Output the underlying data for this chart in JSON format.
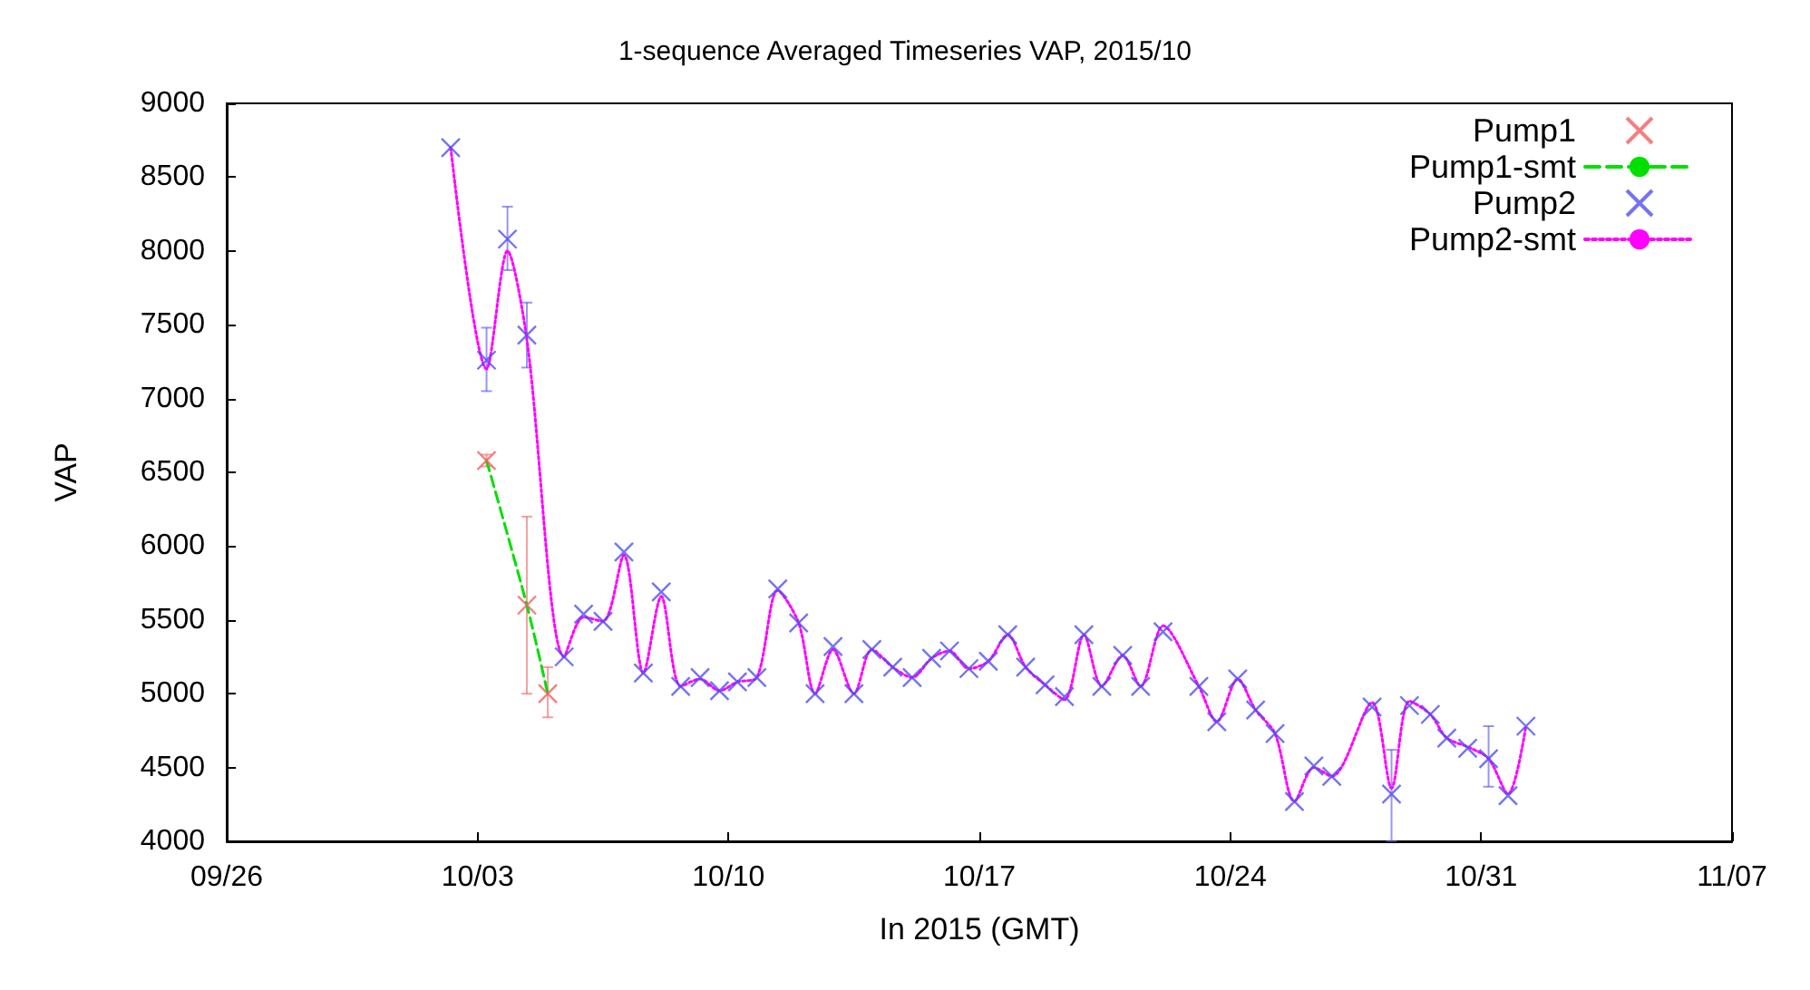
{
  "chart_data": {
    "type": "line",
    "title": "1-sequence Averaged Timeseries VAP, 2015/10",
    "xlabel": "In 2015 (GMT)",
    "ylabel": "VAP",
    "xlim": [
      "2015-09-26",
      "2015-11-07"
    ],
    "xticks": [
      {
        "value": "2015-09-26",
        "label": "09/26"
      },
      {
        "value": "2015-10-03",
        "label": "10/03"
      },
      {
        "value": "2015-10-10",
        "label": "10/10"
      },
      {
        "value": "2015-10-17",
        "label": "10/17"
      },
      {
        "value": "2015-10-24",
        "label": "10/24"
      },
      {
        "value": "2015-10-31",
        "label": "10/31"
      },
      {
        "value": "2015-11-07",
        "label": "11/07"
      }
    ],
    "ylim": [
      4000,
      9000
    ],
    "yticks": [
      4000,
      4500,
      5000,
      5500,
      6000,
      6500,
      7000,
      7500,
      8000,
      8500,
      9000
    ],
    "grid": false,
    "legend": "top right",
    "series": [
      {
        "name": "Pump1",
        "type": "scatter",
        "marker": "cross",
        "color": "#f06060",
        "x": [
          "2015-10-03T06:00",
          "2015-10-04T09:00",
          "2015-10-04T23:00"
        ],
        "values": [
          6580,
          5600,
          5000
        ],
        "errors": [
          [
            6540,
            6620
          ],
          [
            5000,
            6200
          ],
          [
            4840,
            5180
          ]
        ]
      },
      {
        "name": "Pump1-smt",
        "marker": "none",
        "line_style": "dashed",
        "color": "#00e000",
        "x": [
          "2015-10-03T06:00",
          "2015-10-04T09:00",
          "2015-10-04T23:00"
        ],
        "values": [
          6580,
          5600,
          5000
        ]
      },
      {
        "name": "Pump2",
        "type": "scatter",
        "marker": "cross",
        "color": "#5050f0",
        "x": [
          "2015-10-02T06:00",
          "2015-10-03T06:00",
          "2015-10-03T20:00",
          "2015-10-04T09:00",
          "2015-10-05T10:00",
          "2015-10-05T23:00",
          "2015-10-06T12:00",
          "2015-10-07T02:00",
          "2015-10-07T15:00",
          "2015-10-08T03:00",
          "2015-10-08T16:00",
          "2015-10-09T05:00",
          "2015-10-09T18:00",
          "2015-10-10T06:00",
          "2015-10-10T19:00",
          "2015-10-11T09:00",
          "2015-10-11T23:00",
          "2015-10-12T10:00",
          "2015-10-12T22:00",
          "2015-10-13T12:00",
          "2015-10-14T00:00",
          "2015-10-14T14:00",
          "2015-10-15T03:00",
          "2015-10-15T16:00",
          "2015-10-16T04:00",
          "2015-10-16T17:00",
          "2015-10-17T06:00",
          "2015-10-17T19:00",
          "2015-10-18T07:00",
          "2015-10-18T20:00",
          "2015-10-19T09:00",
          "2015-10-19T22:00",
          "2015-10-20T10:00",
          "2015-10-21T00:00",
          "2015-10-21T12:00",
          "2015-10-22T03:00",
          "2015-10-23T03:00",
          "2015-10-23T15:00",
          "2015-10-24T05:00",
          "2015-10-24T17:00",
          "2015-10-25T06:00",
          "2015-10-25T19:00",
          "2015-10-26T08:00",
          "2015-10-26T20:00",
          "2015-10-27T23:00",
          "2015-10-28T12:00",
          "2015-10-29T00:00",
          "2015-10-29T14:00",
          "2015-10-30T01:00",
          "2015-10-30T15:00",
          "2015-10-31T05:00",
          "2015-10-31T18:00",
          "2015-11-01T06:00"
        ],
        "values": [
          8700,
          7260,
          8080,
          7430,
          5250,
          5540,
          5490,
          5960,
          5140,
          5690,
          5050,
          5110,
          5020,
          5080,
          5110,
          5710,
          5480,
          5000,
          5320,
          5000,
          5300,
          5180,
          5110,
          5240,
          5290,
          5170,
          5220,
          5400,
          5180,
          5060,
          4980,
          5400,
          5050,
          5260,
          5050,
          5420,
          5050,
          4810,
          5100,
          4890,
          4730,
          4270,
          4510,
          4440,
          4910,
          4320,
          4920,
          4860,
          4700,
          4630,
          4560,
          4310,
          4780
        ],
        "errors": [
          null,
          [
            7050,
            7480
          ],
          [
            7870,
            8300
          ],
          [
            7210,
            7650
          ],
          null,
          null,
          null,
          null,
          null,
          null,
          null,
          null,
          null,
          null,
          null,
          null,
          null,
          null,
          null,
          null,
          null,
          null,
          null,
          null,
          null,
          null,
          null,
          null,
          null,
          null,
          null,
          null,
          null,
          null,
          null,
          null,
          null,
          null,
          null,
          null,
          null,
          null,
          null,
          null,
          null,
          [
            4000,
            4620
          ],
          null,
          null,
          null,
          null,
          [
            4370,
            4780
          ],
          null,
          null
        ]
      },
      {
        "name": "Pump2-smt",
        "marker": "none",
        "line_style": "dotted",
        "color": "#ff00ff",
        "x": [
          "2015-10-02T06:00",
          "2015-10-03T06:00",
          "2015-10-03T20:00",
          "2015-10-04T09:00",
          "2015-10-05T10:00",
          "2015-10-05T23:00",
          "2015-10-06T12:00",
          "2015-10-07T02:00",
          "2015-10-07T15:00",
          "2015-10-08T03:00",
          "2015-10-08T16:00",
          "2015-10-09T05:00",
          "2015-10-09T18:00",
          "2015-10-10T06:00",
          "2015-10-10T19:00",
          "2015-10-11T09:00",
          "2015-10-11T23:00",
          "2015-10-12T10:00",
          "2015-10-12T22:00",
          "2015-10-13T12:00",
          "2015-10-14T00:00",
          "2015-10-14T14:00",
          "2015-10-15T03:00",
          "2015-10-15T16:00",
          "2015-10-16T04:00",
          "2015-10-16T17:00",
          "2015-10-17T06:00",
          "2015-10-17T19:00",
          "2015-10-18T07:00",
          "2015-10-18T20:00",
          "2015-10-19T09:00",
          "2015-10-19T22:00",
          "2015-10-20T10:00",
          "2015-10-21T00:00",
          "2015-10-21T12:00",
          "2015-10-22T03:00",
          "2015-10-23T03:00",
          "2015-10-23T15:00",
          "2015-10-24T05:00",
          "2015-10-24T17:00",
          "2015-10-25T06:00",
          "2015-10-25T19:00",
          "2015-10-26T08:00",
          "2015-10-26T20:00",
          "2015-10-27T23:00",
          "2015-10-28T12:00",
          "2015-10-29T00:00",
          "2015-10-29T14:00",
          "2015-10-30T01:00",
          "2015-10-30T15:00",
          "2015-10-31T05:00",
          "2015-10-31T18:00",
          "2015-11-01T06:00"
        ],
        "values": [
          8700,
          7200,
          8000,
          7400,
          5250,
          5520,
          5490,
          5940,
          5140,
          5660,
          5050,
          5100,
          5020,
          5080,
          5110,
          5700,
          5480,
          5000,
          5300,
          5000,
          5300,
          5180,
          5110,
          5240,
          5290,
          5170,
          5220,
          5400,
          5180,
          5060,
          4960,
          5400,
          5050,
          5260,
          5050,
          5460,
          5050,
          4810,
          5100,
          4890,
          4730,
          4270,
          4500,
          4440,
          4940,
          4360,
          4950,
          4860,
          4700,
          4640,
          4560,
          4320,
          4780
        ]
      }
    ]
  }
}
